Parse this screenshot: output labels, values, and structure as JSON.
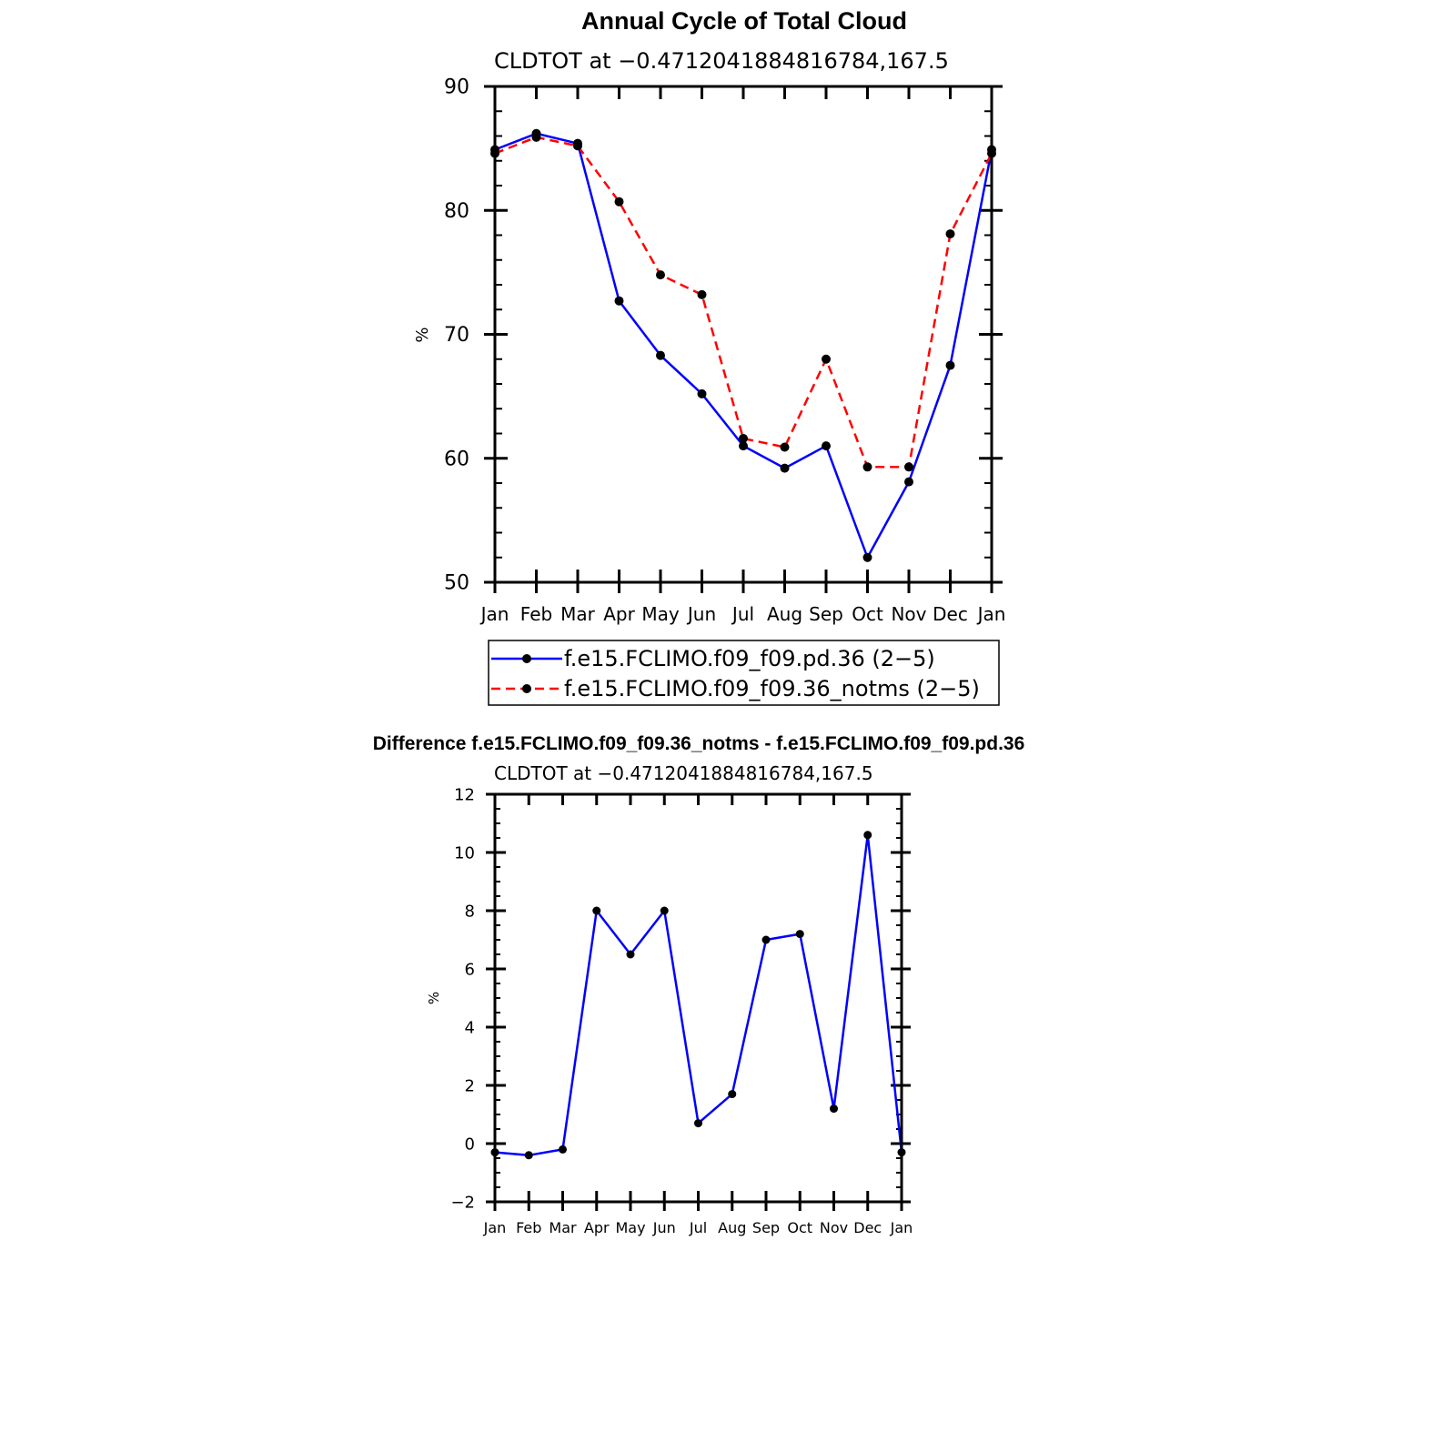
{
  "figure": {
    "months_label_set": [
      "Jan",
      "Feb",
      "Mar",
      "Apr",
      "May",
      "Jun",
      "Jul",
      "Aug",
      "Sep",
      "Oct",
      "Nov",
      "Dec",
      "Jan"
    ]
  },
  "chart_data": [
    {
      "type": "line",
      "title": "Annual Cycle of Total Cloud",
      "subtitle": "CLDTOT at −0.4712041884816784,167.5",
      "xlabel": "",
      "ylabel": "%",
      "ylim": [
        50,
        90
      ],
      "yticks": [
        50,
        60,
        70,
        80,
        90
      ],
      "ytick_labels": [
        "50",
        "60",
        "70",
        "80",
        "90"
      ],
      "categories": [
        "Jan",
        "Feb",
        "Mar",
        "Apr",
        "May",
        "Jun",
        "Jul",
        "Aug",
        "Sep",
        "Oct",
        "Nov",
        "Dec",
        "Jan"
      ],
      "series": [
        {
          "name": "f.e15.FCLIMO.f09_f09.pd.36 (2−5)",
          "color": "#0000ff",
          "dash": "solid",
          "values": [
            84.9,
            86.2,
            85.4,
            72.7,
            68.3,
            65.2,
            61.0,
            59.2,
            61.0,
            52.0,
            58.1,
            67.5,
            84.9
          ]
        },
        {
          "name": "f.e15.FCLIMO.f09_f09.36_notms (2−5)",
          "color": "#ff0000",
          "dash": "dashed",
          "values": [
            84.6,
            85.9,
            85.2,
            80.7,
            74.8,
            73.2,
            61.6,
            60.9,
            68.0,
            59.3,
            59.3,
            78.1,
            84.6
          ]
        }
      ],
      "legend": "below"
    },
    {
      "type": "line",
      "title": "Difference f.e15.FCLIMO.f09_f09.36_notms - f.e15.FCLIMO.f09_f09.pd.36",
      "subtitle": "CLDTOT at −0.4712041884816784,167.5",
      "xlabel": "",
      "ylabel": "%",
      "ylim": [
        -2,
        12
      ],
      "yticks": [
        -2,
        0,
        2,
        4,
        6,
        8,
        10,
        12
      ],
      "ytick_labels": [
        "−2",
        "0",
        "2",
        "4",
        "6",
        "8",
        "10",
        "12"
      ],
      "categories": [
        "Jan",
        "Feb",
        "Mar",
        "Apr",
        "May",
        "Jun",
        "Jul",
        "Aug",
        "Sep",
        "Oct",
        "Nov",
        "Dec",
        "Jan"
      ],
      "series": [
        {
          "name": "Difference",
          "color": "#0000ff",
          "dash": "solid",
          "values": [
            -0.3,
            -0.4,
            -0.2,
            8.0,
            6.5,
            8.0,
            0.7,
            1.7,
            7.0,
            7.2,
            1.2,
            10.6,
            -0.3
          ]
        }
      ]
    }
  ]
}
